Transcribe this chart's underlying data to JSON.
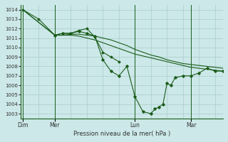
{
  "title": "Pression niveau de la mer( hPa )",
  "bg_color": "#cce8e8",
  "grid_color": "#aacccc",
  "line_color": "#1a5c1a",
  "ylim": [
    1002.5,
    1014.5
  ],
  "yticks": [
    1003,
    1004,
    1005,
    1006,
    1007,
    1008,
    1009,
    1010,
    1011,
    1012,
    1013,
    1014
  ],
  "day_positions": [
    0,
    16,
    56,
    84
  ],
  "day_labels": [
    "Dim",
    "Mer",
    "Lun",
    "Mar"
  ],
  "xlim": [
    -1,
    100
  ],
  "xgrid_step": 8,
  "series1": {
    "x": [
      0,
      16,
      20,
      24,
      28,
      32,
      36,
      40,
      44,
      48,
      52,
      56,
      60,
      64,
      68,
      72,
      76,
      80,
      84,
      88,
      92,
      96,
      100
    ],
    "y": [
      1014,
      1011.3,
      1011.3,
      1011.4,
      1011.4,
      1011.3,
      1011.2,
      1011.0,
      1010.8,
      1010.5,
      1010.2,
      1009.8,
      1009.5,
      1009.2,
      1009.0,
      1008.7,
      1008.5,
      1008.3,
      1008.2,
      1008.1,
      1008.0,
      1007.9,
      1007.8
    ]
  },
  "series2": {
    "x": [
      0,
      16,
      20,
      24,
      28,
      32,
      36,
      40,
      44,
      48,
      52,
      56,
      60,
      64,
      68,
      72,
      76,
      80,
      84,
      88,
      92,
      96,
      100
    ],
    "y": [
      1014,
      1011.3,
      1011.3,
      1011.3,
      1011.2,
      1011.0,
      1010.8,
      1010.5,
      1010.2,
      1009.9,
      1009.6,
      1009.3,
      1009.1,
      1008.9,
      1008.7,
      1008.5,
      1008.3,
      1008.1,
      1007.9,
      1007.8,
      1007.7,
      1007.6,
      1007.5
    ]
  },
  "series3": {
    "x": [
      0,
      8,
      16,
      20,
      24,
      28,
      32,
      36,
      40,
      44,
      48
    ],
    "y": [
      1014,
      1013.0,
      1011.3,
      1011.5,
      1011.5,
      1011.8,
      1012.0,
      1011.1,
      1009.5,
      1009.0,
      1008.5
    ]
  },
  "series4": {
    "x": [
      16,
      20,
      24,
      28,
      32,
      36,
      40,
      44,
      48,
      52,
      56,
      60,
      64,
      66,
      68,
      70,
      72,
      74,
      76,
      80,
      84,
      88,
      92,
      96,
      100
    ],
    "y": [
      1011.3,
      1011.5,
      1011.5,
      1011.7,
      1011.5,
      1011.2,
      1008.7,
      1007.5,
      1007.0,
      1008.0,
      1004.8,
      1003.2,
      1003.0,
      1003.5,
      1003.7,
      1004.0,
      1006.2,
      1006.0,
      1006.8,
      1007.0,
      1007.0,
      1007.3,
      1007.8,
      1007.5,
      1007.5
    ],
    "markers": true
  }
}
